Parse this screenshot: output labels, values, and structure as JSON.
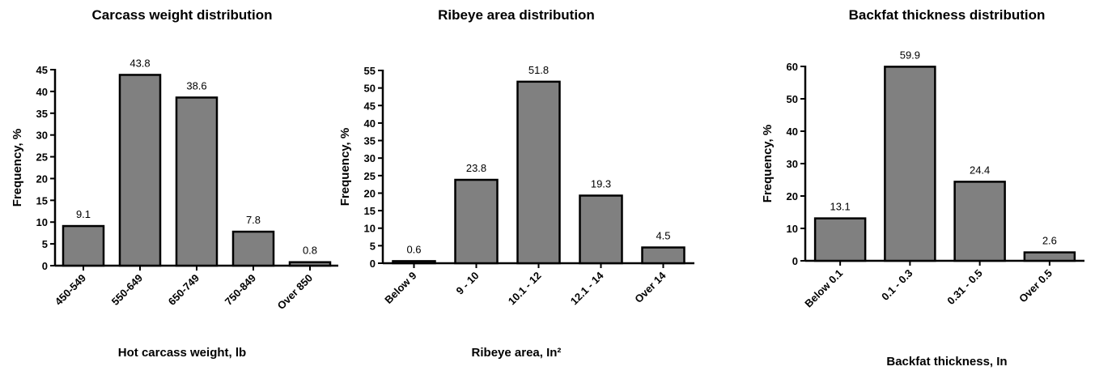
{
  "chart_data": [
    {
      "type": "bar",
      "title": "Carcass weight distribution",
      "x_label": "Hot carcass weight, lb",
      "y_label": "Frequency, %",
      "categories": [
        "450-549",
        "550-649",
        "650-749",
        "750-849",
        "Over 850"
      ],
      "values": [
        9.1,
        43.8,
        38.6,
        7.8,
        0.8
      ],
      "color": "#808080",
      "ylim": [
        0,
        45
      ],
      "yticks": [
        0,
        5,
        10,
        15,
        20,
        25,
        30,
        35,
        40,
        45
      ]
    },
    {
      "type": "bar",
      "title": "Ribeye area distribution",
      "x_label": "Ribeye area, In²",
      "y_label": "Frequency, %",
      "categories": [
        "Below 9",
        "9 - 10",
        "10.1 - 12",
        "12.1 - 14",
        "Over 14"
      ],
      "values": [
        0.6,
        23.8,
        51.8,
        19.3,
        4.5
      ],
      "color": "#808080",
      "ylim": [
        0,
        55
      ],
      "yticks": [
        0,
        5,
        10,
        15,
        20,
        25,
        30,
        35,
        40,
        45,
        50,
        55
      ]
    },
    {
      "type": "bar",
      "title": "Backfat thickness distribution",
      "x_label": "Backfat thickness, In",
      "y_label": "Frequency, %",
      "categories": [
        "Below 0.1",
        "0.1 - 0.3",
        "0.31 - 0.5",
        "Over 0.5"
      ],
      "values": [
        13.1,
        59.9,
        24.4,
        2.6
      ],
      "color": "#808080",
      "ylim": [
        0,
        60
      ],
      "yticks": [
        0,
        10,
        20,
        30,
        40,
        50,
        60
      ]
    }
  ]
}
